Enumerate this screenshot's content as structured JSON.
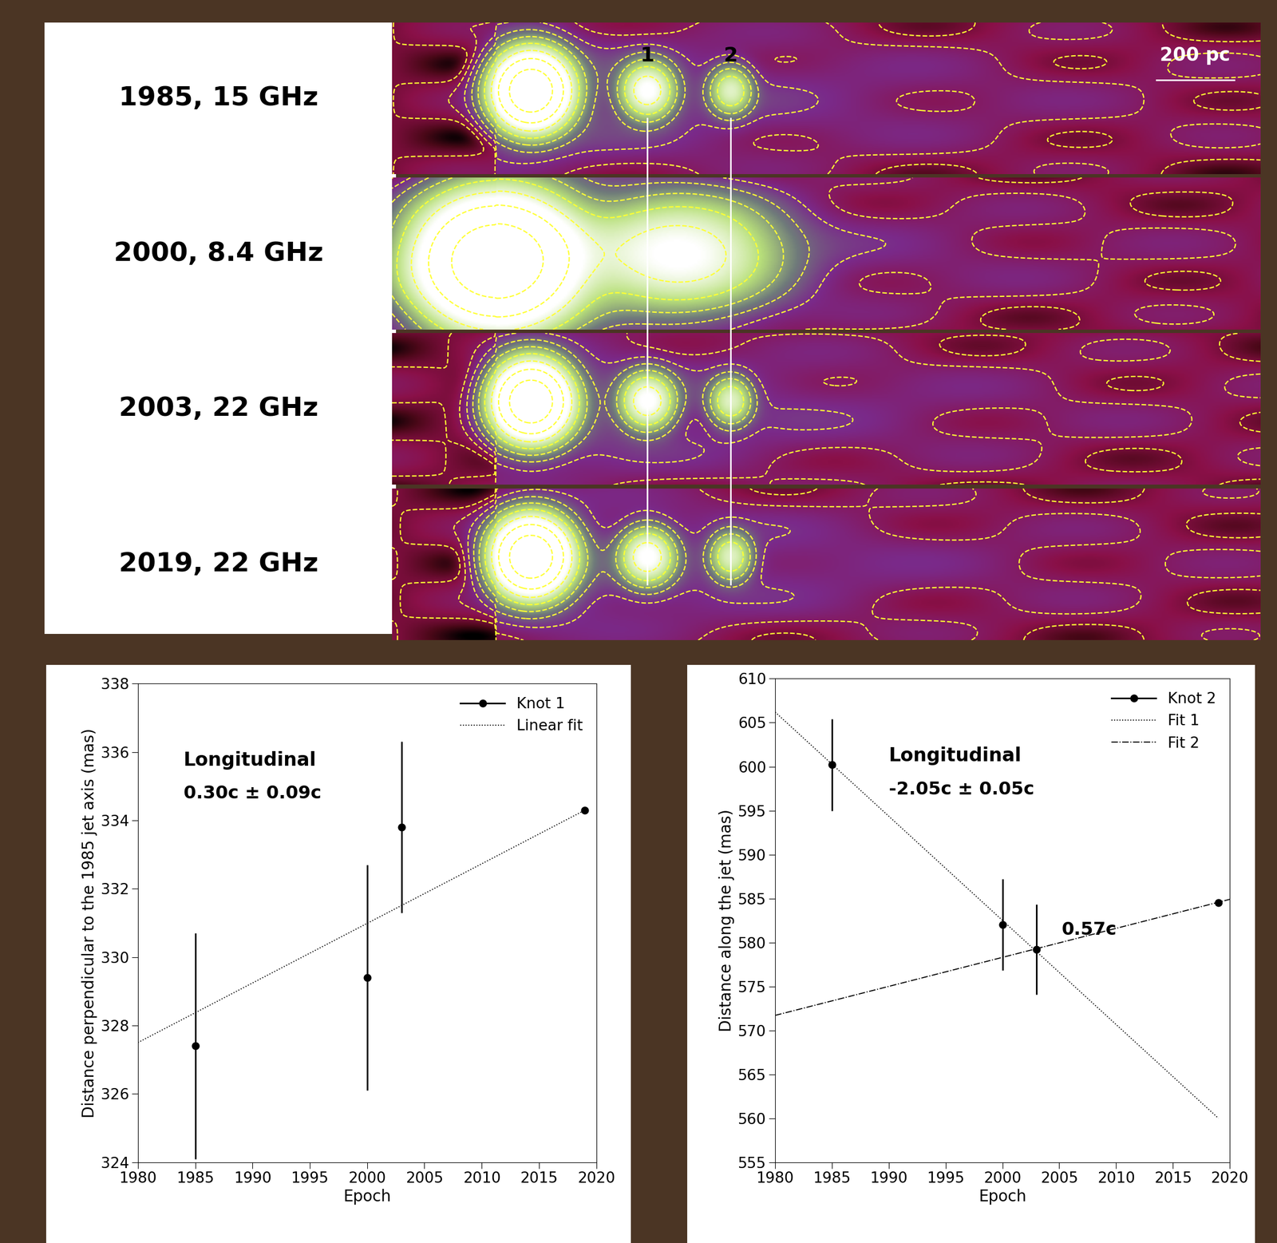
{
  "images": {
    "panels": [
      {
        "label": "1985, 15 GHz"
      },
      {
        "label": "2000, 8.4 GHz"
      },
      {
        "label": "2003, 22 GHz"
      },
      {
        "label": "2019, 22 GHz"
      }
    ],
    "scale_bar": "200 pc",
    "knots": [
      "1",
      "2"
    ]
  },
  "chart_data": [
    {
      "type": "scatter",
      "xlabel": "Epoch",
      "ylabel": "Distance perpendicular to the 1985 jet axis (mas)",
      "annotations": [
        "Longitudinal",
        "0.30c ± 0.09c"
      ],
      "xlim": [
        1980,
        2020
      ],
      "ylim": [
        324,
        338
      ],
      "xticks": [
        1980,
        1985,
        1990,
        1995,
        2000,
        2005,
        2010,
        2015,
        2020
      ],
      "yticks": [
        324,
        326,
        328,
        330,
        332,
        334,
        336,
        338
      ],
      "legend": "upper right",
      "series": [
        {
          "name": "Knot 1",
          "color": "#000000",
          "marker": "o",
          "line_style": "none",
          "x": [
            1985,
            2000,
            2003,
            2019
          ],
          "values": [
            327.4,
            329.4,
            333.8,
            334.3
          ],
          "errors": [
            3.3,
            3.3,
            2.5,
            0.1
          ]
        },
        {
          "name": "Linear fit",
          "type": "line",
          "color": "#000000",
          "line_style": "dotted",
          "x": [
            1980,
            2019
          ],
          "values": [
            327.5,
            334.3
          ]
        }
      ]
    },
    {
      "type": "scatter",
      "xlabel": "Epoch",
      "ylabel": "Distance along the jet (mas)",
      "annotations": [
        "Longitudinal",
        "-2.05c ± 0.05c",
        "0.57c"
      ],
      "xlim": [
        1980,
        2020
      ],
      "ylim": [
        555,
        610
      ],
      "xticks": [
        1980,
        1985,
        1990,
        1995,
        2000,
        2005,
        2010,
        2015,
        2020
      ],
      "yticks": [
        555,
        560,
        565,
        570,
        575,
        580,
        585,
        590,
        595,
        600,
        605,
        610
      ],
      "legend": "upper right",
      "series": [
        {
          "name": "Knot 2",
          "color": "#000000",
          "marker": "o",
          "line_style": "none",
          "x": [
            1985,
            2000,
            2003,
            2019
          ],
          "values": [
            600.2,
            582.0,
            579.2,
            584.5
          ],
          "errors": [
            5.2,
            5.2,
            5.1,
            0.3
          ]
        },
        {
          "name": "Fit 1",
          "type": "line",
          "color": "#000000",
          "line_style": "dotted",
          "x": [
            1980,
            2019
          ],
          "values": [
            606.2,
            560.0
          ]
        },
        {
          "name": "Fit 2",
          "type": "line",
          "color": "#000000",
          "line_style": "dashdot",
          "x": [
            1980,
            2020
          ],
          "values": [
            571.7,
            584.9
          ]
        }
      ]
    }
  ]
}
